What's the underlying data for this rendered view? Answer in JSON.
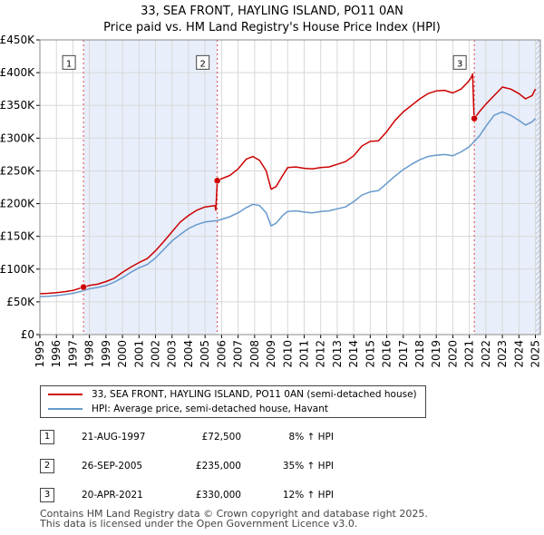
{
  "chart_data": {
    "type": "line",
    "title": "33, SEA FRONT, HAYLING ISLAND, PO11 0AN",
    "subtitle": "Price paid vs. HM Land Registry's House Price Index (HPI)",
    "xlim": [
      1995,
      2025.3
    ],
    "ylim": [
      0,
      450000
    ],
    "x_ticks": [
      "1995",
      "1996",
      "1997",
      "1998",
      "1999",
      "2000",
      "2001",
      "2002",
      "2003",
      "2004",
      "2005",
      "2006",
      "2007",
      "2008",
      "2009",
      "2010",
      "2011",
      "2012",
      "2013",
      "2014",
      "2015",
      "2016",
      "2017",
      "2018",
      "2019",
      "2020",
      "2021",
      "2022",
      "2023",
      "2024",
      "2025"
    ],
    "y_ticks": [
      {
        "value": 0,
        "label": "£0"
      },
      {
        "value": 50000,
        "label": "£50K"
      },
      {
        "value": 100000,
        "label": "£100K"
      },
      {
        "value": 150000,
        "label": "£150K"
      },
      {
        "value": 200000,
        "label": "£200K"
      },
      {
        "value": 250000,
        "label": "£250K"
      },
      {
        "value": 300000,
        "label": "£300K"
      },
      {
        "value": 350000,
        "label": "£350K"
      },
      {
        "value": 400000,
        "label": "£400K"
      },
      {
        "value": 450000,
        "label": "£450K"
      }
    ],
    "series": [
      {
        "name": "33, SEA FRONT, HAYLING ISLAND, PO11 0AN (semi-detached house)",
        "color": "#cc0000",
        "points": [
          [
            1995.0,
            62500
          ],
          [
            1995.5,
            63000
          ],
          [
            1996.0,
            64000
          ],
          [
            1996.5,
            65500
          ],
          [
            1997.0,
            67500
          ],
          [
            1997.64,
            72500
          ],
          [
            1998.0,
            75000
          ],
          [
            1998.5,
            77000
          ],
          [
            1999.0,
            81000
          ],
          [
            1999.5,
            86000
          ],
          [
            2000.0,
            95000
          ],
          [
            2000.5,
            103000
          ],
          [
            2001.0,
            110000
          ],
          [
            2001.5,
            116000
          ],
          [
            2002.0,
            128000
          ],
          [
            2002.5,
            142000
          ],
          [
            2003.0,
            157000
          ],
          [
            2003.5,
            172000
          ],
          [
            2004.0,
            182000
          ],
          [
            2004.5,
            190000
          ],
          [
            2005.0,
            195000
          ],
          [
            2005.6,
            197000
          ],
          [
            2005.65,
            190000
          ],
          [
            2005.74,
            235000
          ],
          [
            2006.0,
            238000
          ],
          [
            2006.5,
            243000
          ],
          [
            2007.0,
            253000
          ],
          [
            2007.5,
            268000
          ],
          [
            2007.9,
            272000
          ],
          [
            2008.3,
            266000
          ],
          [
            2008.7,
            250000
          ],
          [
            2009.0,
            222000
          ],
          [
            2009.3,
            226000
          ],
          [
            2009.7,
            243000
          ],
          [
            2010.0,
            255000
          ],
          [
            2010.5,
            256000
          ],
          [
            2011.0,
            254000
          ],
          [
            2011.5,
            253000
          ],
          [
            2012.0,
            255000
          ],
          [
            2012.5,
            256000
          ],
          [
            2013.0,
            260000
          ],
          [
            2013.5,
            264000
          ],
          [
            2014.0,
            273000
          ],
          [
            2014.5,
            288000
          ],
          [
            2015.0,
            295000
          ],
          [
            2015.5,
            296000
          ],
          [
            2016.0,
            310000
          ],
          [
            2016.5,
            327000
          ],
          [
            2017.0,
            340000
          ],
          [
            2017.5,
            350000
          ],
          [
            2018.0,
            360000
          ],
          [
            2018.5,
            368000
          ],
          [
            2019.0,
            372000
          ],
          [
            2019.5,
            373000
          ],
          [
            2020.0,
            369000
          ],
          [
            2020.5,
            375000
          ],
          [
            2020.9,
            385000
          ],
          [
            2021.1,
            392000
          ],
          [
            2021.2,
            398000
          ],
          [
            2021.27,
            340000
          ],
          [
            2021.3,
            330000
          ],
          [
            2021.6,
            340000
          ],
          [
            2022.0,
            352000
          ],
          [
            2022.5,
            365000
          ],
          [
            2023.0,
            378000
          ],
          [
            2023.5,
            375000
          ],
          [
            2024.0,
            368000
          ],
          [
            2024.4,
            360000
          ],
          [
            2024.8,
            365000
          ],
          [
            2025.0,
            375000
          ]
        ]
      },
      {
        "name": "HPI: Average price, semi-detached house, Havant",
        "color": "#6699cc",
        "points": [
          [
            1995.0,
            58000
          ],
          [
            1995.5,
            58500
          ],
          [
            1996.0,
            59500
          ],
          [
            1996.5,
            61000
          ],
          [
            1997.0,
            63000
          ],
          [
            1997.64,
            67000
          ],
          [
            1998.0,
            70000
          ],
          [
            1998.5,
            72000
          ],
          [
            1999.0,
            75000
          ],
          [
            1999.5,
            80000
          ],
          [
            2000.0,
            87000
          ],
          [
            2000.5,
            95000
          ],
          [
            2001.0,
            102000
          ],
          [
            2001.5,
            107000
          ],
          [
            2002.0,
            117000
          ],
          [
            2002.5,
            130000
          ],
          [
            2003.0,
            143000
          ],
          [
            2003.5,
            153000
          ],
          [
            2004.0,
            162000
          ],
          [
            2004.5,
            168000
          ],
          [
            2005.0,
            172000
          ],
          [
            2005.74,
            174000
          ],
          [
            2006.0,
            176000
          ],
          [
            2006.5,
            180000
          ],
          [
            2007.0,
            186000
          ],
          [
            2007.5,
            194000
          ],
          [
            2007.9,
            199000
          ],
          [
            2008.3,
            197000
          ],
          [
            2008.7,
            186000
          ],
          [
            2009.0,
            166000
          ],
          [
            2009.3,
            170000
          ],
          [
            2009.7,
            182000
          ],
          [
            2010.0,
            188000
          ],
          [
            2010.5,
            189000
          ],
          [
            2011.0,
            187000
          ],
          [
            2011.5,
            186000
          ],
          [
            2012.0,
            188000
          ],
          [
            2012.5,
            189000
          ],
          [
            2013.0,
            192000
          ],
          [
            2013.5,
            195000
          ],
          [
            2014.0,
            203000
          ],
          [
            2014.5,
            213000
          ],
          [
            2015.0,
            218000
          ],
          [
            2015.5,
            220000
          ],
          [
            2016.0,
            231000
          ],
          [
            2016.5,
            242000
          ],
          [
            2017.0,
            252000
          ],
          [
            2017.5,
            260000
          ],
          [
            2018.0,
            267000
          ],
          [
            2018.5,
            272000
          ],
          [
            2019.0,
            274000
          ],
          [
            2019.5,
            275000
          ],
          [
            2020.0,
            273000
          ],
          [
            2020.5,
            279000
          ],
          [
            2021.0,
            287000
          ],
          [
            2021.3,
            295000
          ],
          [
            2021.6,
            303000
          ],
          [
            2022.0,
            318000
          ],
          [
            2022.5,
            335000
          ],
          [
            2023.0,
            340000
          ],
          [
            2023.5,
            335000
          ],
          [
            2024.0,
            327000
          ],
          [
            2024.4,
            320000
          ],
          [
            2024.8,
            325000
          ],
          [
            2025.0,
            330000
          ]
        ]
      }
    ],
    "sales": [
      {
        "label": "1",
        "x": 1997.64,
        "price": 72500
      },
      {
        "label": "2",
        "x": 2005.74,
        "price": 235000
      },
      {
        "label": "3",
        "x": 2021.3,
        "price": 330000
      }
    ],
    "shaded_spans": [
      [
        1997.64,
        2005.74
      ],
      [
        2021.3,
        2025.3
      ]
    ],
    "hatched_span": [
      2025.0,
      2025.3
    ],
    "grid": true
  },
  "legend": {
    "items": [
      {
        "label": "33, SEA FRONT, HAYLING ISLAND, PO11 0AN (semi-detached house)",
        "color": "#cc0000"
      },
      {
        "label": "HPI: Average price, semi-detached house, Havant",
        "color": "#6699cc"
      }
    ]
  },
  "transactions": [
    {
      "num": "1",
      "date": "21-AUG-1997",
      "price": "£72,500",
      "hpi": "8% ↑ HPI"
    },
    {
      "num": "2",
      "date": "26-SEP-2005",
      "price": "£235,000",
      "hpi": "35% ↑ HPI"
    },
    {
      "num": "3",
      "date": "20-APR-2021",
      "price": "£330,000",
      "hpi": "12% ↑ HPI"
    }
  ],
  "footer": {
    "line1": "Contains HM Land Registry data © Crown copyright and database right 2025.",
    "line2": "This data is licensed under the Open Government Licence v3.0."
  }
}
